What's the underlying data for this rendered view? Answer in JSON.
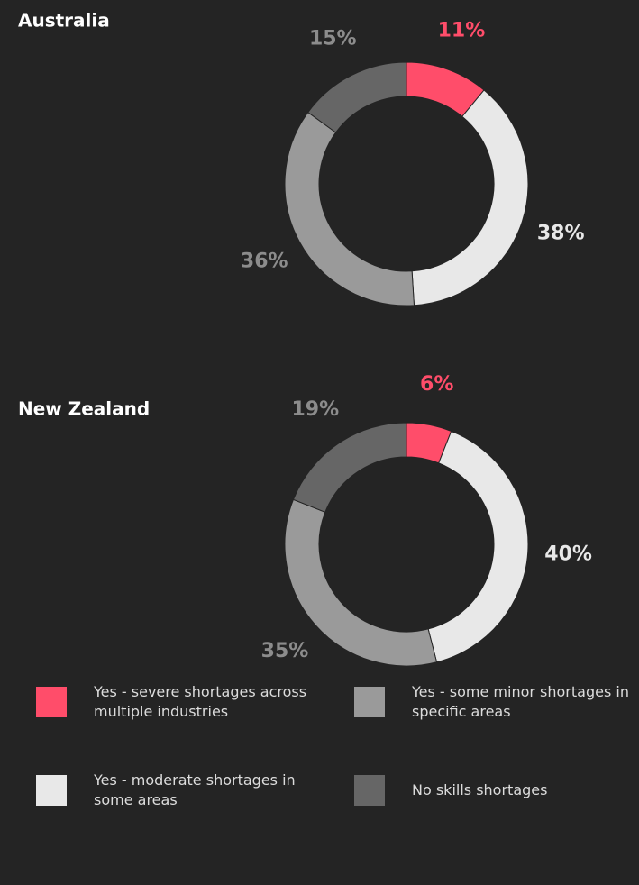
{
  "chart_data": [
    {
      "type": "pie",
      "title": "Australia",
      "values": [
        11,
        38,
        36,
        15
      ],
      "value_labels": [
        "11%",
        "38%",
        "36%",
        "15%"
      ]
    },
    {
      "type": "pie",
      "title": "New Zealand",
      "values": [
        6,
        40,
        35,
        19
      ],
      "value_labels": [
        "6%",
        "40%",
        "35%",
        "19%"
      ]
    }
  ],
  "legend": [
    {
      "name": "Yes - severe shortages across multiple industries",
      "color": "#ff4d6a",
      "label_color": "#ff4d6a"
    },
    {
      "name": "Yes - moderate shortages in some areas",
      "color": "#e8e8e8",
      "label_color": "#e8e8e8"
    },
    {
      "name": "Yes - some minor shortages in specific areas",
      "color": "#9a9a9a",
      "label_color": "#8c8c8c"
    },
    {
      "name": "No skills shortages",
      "color": "#666666",
      "label_color": "#8c8c8c"
    }
  ]
}
